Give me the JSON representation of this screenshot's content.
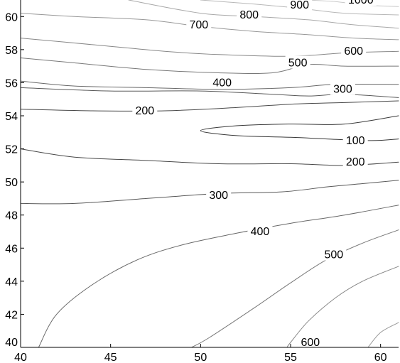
{
  "chart_data": {
    "type": "contour",
    "xlim": [
      40,
      61
    ],
    "ylim": [
      40,
      61
    ],
    "x_ticks": [
      40,
      45,
      50,
      55,
      60
    ],
    "y_ticks": [
      40,
      42,
      44,
      46,
      48,
      50,
      52,
      54,
      56,
      58,
      60
    ],
    "x_tick_labels": [
      "40",
      "45",
      "50",
      "55",
      "60"
    ],
    "y_tick_labels": [
      "40",
      "42",
      "44",
      "46",
      "48",
      "50",
      "52",
      "54",
      "56",
      "58",
      "60"
    ],
    "grid": false,
    "line_color": "#000000",
    "levels": [
      {
        "level": 1000,
        "label": "1000",
        "points": [
          [
            55.9,
            61
          ],
          [
            57.5,
            60.9
          ],
          [
            59,
            60.7
          ],
          [
            61,
            60.6
          ]
        ],
        "label_at": [
          58.9,
          61.0
        ]
      },
      {
        "level": 900,
        "label": "900",
        "points": [
          [
            50,
            61
          ],
          [
            53,
            60.75
          ],
          [
            55.5,
            60.5
          ],
          [
            58,
            60.2
          ],
          [
            61,
            60.1
          ]
        ],
        "label_at": [
          55.5,
          60.7
        ]
      },
      {
        "level": 800,
        "label": "800",
        "points": [
          [
            46,
            61
          ],
          [
            50,
            60.2
          ],
          [
            53,
            60
          ],
          [
            56,
            59.8
          ],
          [
            58.5,
            59.5
          ],
          [
            61,
            59.3
          ]
        ],
        "label_at": [
          52.7,
          60.1
        ]
      },
      {
        "level": 700,
        "label": "700",
        "points": [
          [
            40,
            60.2
          ],
          [
            43,
            60
          ],
          [
            47,
            59.8
          ],
          [
            50,
            59.4
          ],
          [
            53,
            59.1
          ],
          [
            56,
            58.9
          ],
          [
            58.5,
            58.7
          ],
          [
            61,
            58.6
          ]
        ],
        "label_at": [
          49.9,
          59.5
        ]
      },
      {
        "level": 600,
        "label": "600",
        "points": [
          [
            40,
            58.7
          ],
          [
            44,
            58.3
          ],
          [
            48,
            57.9
          ],
          [
            51,
            57.7
          ],
          [
            55,
            57.6
          ],
          [
            58,
            57.8
          ],
          [
            61,
            57.9
          ]
        ],
        "label_at": [
          58.5,
          57.9
        ]
      },
      {
        "level": 500,
        "label": "500",
        "points": [
          [
            40,
            57.5
          ],
          [
            43,
            57.2
          ],
          [
            47,
            56.8
          ],
          [
            51,
            56.6
          ],
          [
            54,
            56.6
          ],
          [
            56,
            57.1
          ],
          [
            58,
            57
          ],
          [
            61,
            57
          ]
        ],
        "label_at": [
          55.4,
          57.2
        ]
      },
      {
        "level": 400,
        "label": "400",
        "points": [
          [
            40,
            56.1
          ],
          [
            43,
            55.8
          ],
          [
            47,
            55.7
          ],
          [
            51,
            55.6
          ],
          [
            55,
            55.7
          ],
          [
            57.5,
            55.9
          ],
          [
            61,
            55.9
          ]
        ],
        "label_at": [
          51.2,
          56.0
        ]
      },
      {
        "level": 300,
        "label": "300",
        "points": [
          [
            40,
            55.7
          ],
          [
            45,
            55.5
          ],
          [
            50,
            55.5
          ],
          [
            54,
            55.3
          ],
          [
            56,
            55.2
          ],
          [
            58,
            55.3
          ],
          [
            61,
            55.1
          ]
        ],
        "label_at": [
          57.9,
          55.6
        ]
      },
      {
        "level": 200,
        "label": "200",
        "points": [
          [
            40,
            54.4
          ],
          [
            44,
            54.3
          ],
          [
            48,
            54.3
          ],
          [
            52,
            54.5
          ],
          [
            55,
            54.7
          ],
          [
            58,
            54.8
          ],
          [
            61,
            54.9
          ]
        ],
        "label_at": [
          46.9,
          54.3
        ]
      },
      {
        "level": 100,
        "label": "100",
        "points": [
          [
            61,
            54
          ],
          [
            58,
            53.5
          ],
          [
            55,
            53.5
          ],
          [
            52,
            53.4
          ],
          [
            50,
            53.1
          ],
          [
            52,
            52.8
          ],
          [
            55,
            52.7
          ],
          [
            57,
            52.6
          ],
          [
            59.5,
            52.5
          ],
          [
            61,
            52.6
          ]
        ],
        "label_at": [
          58.6,
          52.5
        ]
      },
      {
        "level": 200,
        "label": "200",
        "points": [
          [
            40,
            52
          ],
          [
            43,
            51.5
          ],
          [
            47,
            51.3
          ],
          [
            51,
            51.1
          ],
          [
            55,
            51.1
          ],
          [
            58,
            51.0
          ],
          [
            61,
            51.2
          ]
        ],
        "label_at": [
          58.6,
          51.2
        ]
      },
      {
        "level": 300,
        "label": "300",
        "points": [
          [
            40,
            48.7
          ],
          [
            43,
            48.7
          ],
          [
            47,
            49.0
          ],
          [
            51,
            49.3
          ],
          [
            54.5,
            49.4
          ],
          [
            57,
            49.7
          ],
          [
            59,
            49.9
          ],
          [
            61,
            50.1
          ]
        ],
        "label_at": [
          51.0,
          49.2
        ]
      },
      {
        "level": 400,
        "label": "400",
        "points": [
          [
            61,
            48.6
          ],
          [
            58,
            48.0
          ],
          [
            55,
            47.5
          ],
          [
            52,
            46.9
          ],
          [
            49,
            46.2
          ],
          [
            46.5,
            45.3
          ],
          [
            44,
            43.8
          ],
          [
            42,
            42.0
          ],
          [
            41,
            40
          ]
        ],
        "label_at": [
          53.3,
          47.0
        ]
      },
      {
        "level": 500,
        "label": "500",
        "points": [
          [
            61,
            47.1
          ],
          [
            59,
            46.3
          ],
          [
            57,
            45.3
          ],
          [
            55,
            43.9
          ],
          [
            53,
            42.4
          ],
          [
            50.5,
            40.6
          ],
          [
            49.5,
            40
          ]
        ],
        "label_at": [
          57.4,
          45.6
        ]
      },
      {
        "level": 600,
        "label": "600",
        "points": [
          [
            61,
            44.9
          ],
          [
            59,
            44.0
          ],
          [
            57.5,
            43.0
          ],
          [
            56,
            41.6
          ],
          [
            55,
            40.3
          ],
          [
            54.8,
            40
          ]
        ],
        "label_at": [
          56.1,
          40.3
        ]
      },
      {
        "level": 700,
        "label": "",
        "points": [
          [
            61,
            41.5
          ],
          [
            60,
            40.9
          ],
          [
            59.3,
            40
          ]
        ],
        "label_at": null
      }
    ]
  }
}
